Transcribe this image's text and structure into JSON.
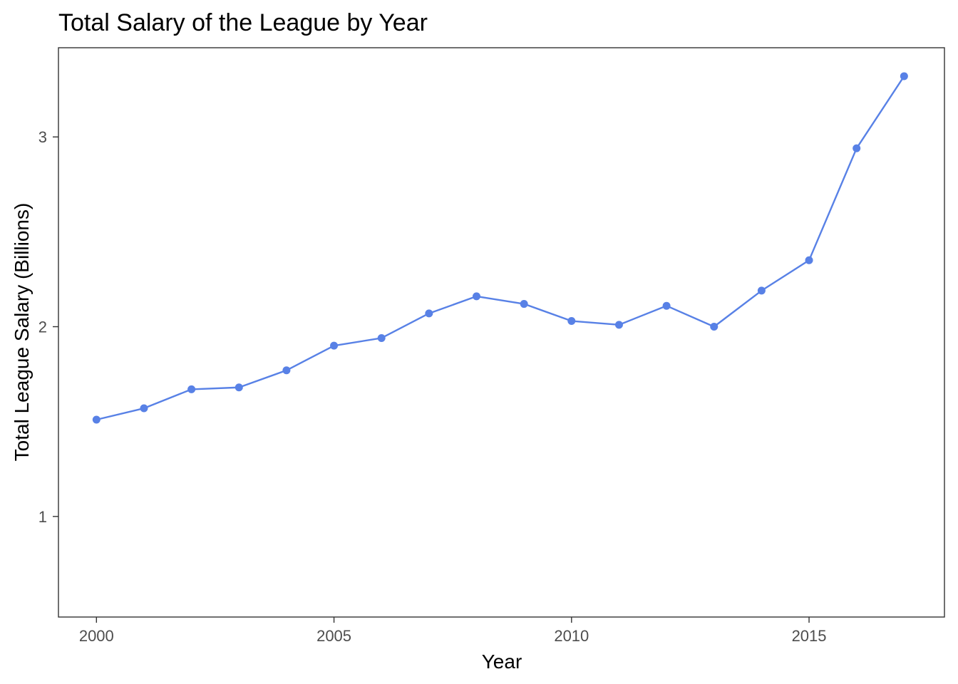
{
  "chart_data": {
    "type": "line",
    "title": "Total Salary of the League by Year",
    "xlabel": "Year",
    "ylabel": "Total League Salary (Billions)",
    "x": [
      2000,
      2001,
      2002,
      2003,
      2004,
      2005,
      2006,
      2007,
      2008,
      2009,
      2010,
      2011,
      2012,
      2013,
      2014,
      2015,
      2016,
      2017
    ],
    "series": [
      {
        "values": [
          1.51,
          1.57,
          1.67,
          1.68,
          1.77,
          1.9,
          1.94,
          2.07,
          2.16,
          2.12,
          2.03,
          2.01,
          2.11,
          2.0,
          2.19,
          2.35,
          2.94,
          3.32
        ]
      }
    ],
    "xlim": [
      1999.2,
      2017.85
    ],
    "ylim": [
      0.47,
      3.47
    ],
    "xticks": [
      2000,
      2005,
      2010,
      2015
    ],
    "yticks": [
      1,
      2,
      3
    ],
    "grid": false,
    "legend": "none",
    "colors": {
      "series": "#5881e6",
      "panel_border": "#333333",
      "tick_mark": "#333333",
      "tick_label": "#4d4d4d"
    }
  }
}
